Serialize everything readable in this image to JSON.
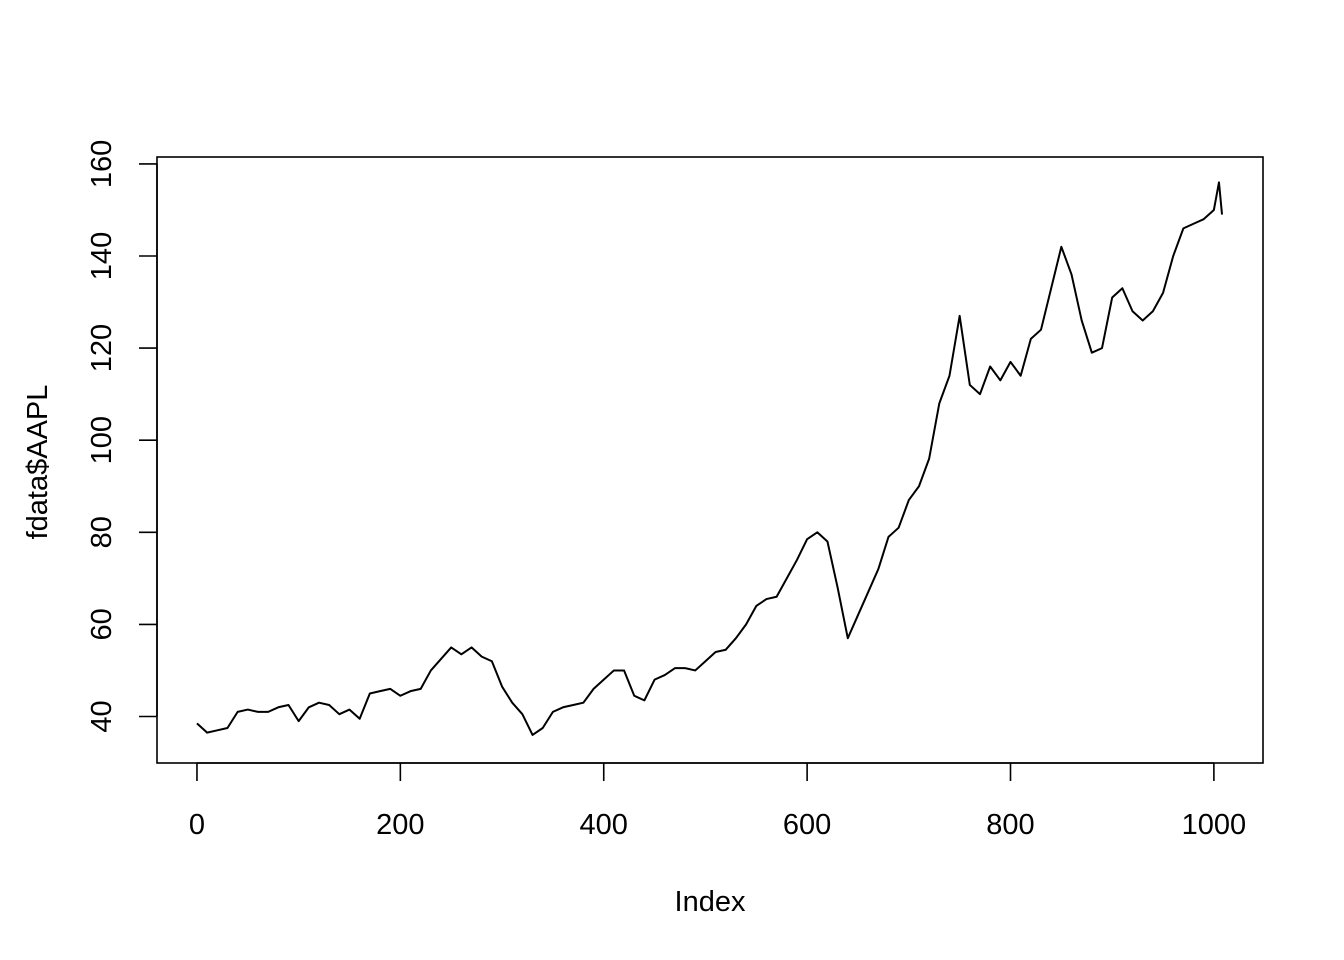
{
  "chart_data": {
    "type": "line",
    "xlabel": "Index",
    "ylabel": "fdata$AAPL",
    "x": [
      0,
      10,
      20,
      30,
      40,
      50,
      60,
      70,
      80,
      90,
      100,
      110,
      120,
      130,
      140,
      150,
      160,
      170,
      180,
      190,
      200,
      210,
      220,
      230,
      240,
      250,
      260,
      270,
      280,
      290,
      300,
      310,
      320,
      330,
      340,
      350,
      360,
      370,
      380,
      390,
      400,
      410,
      420,
      430,
      440,
      450,
      460,
      470,
      480,
      490,
      500,
      510,
      520,
      530,
      540,
      550,
      560,
      570,
      580,
      590,
      600,
      610,
      620,
      630,
      640,
      650,
      660,
      670,
      680,
      690,
      700,
      710,
      720,
      730,
      740,
      750,
      760,
      770,
      780,
      790,
      800,
      810,
      820,
      830,
      840,
      850,
      860,
      870,
      880,
      890,
      900,
      910,
      920,
      930,
      940,
      950,
      960,
      970,
      980,
      990,
      1000,
      1005,
      1008
    ],
    "series": [
      {
        "color": "#000000",
        "values": [
          38.5,
          36.5,
          37,
          37.5,
          41,
          41.5,
          41,
          41,
          42,
          42.5,
          39,
          42,
          43,
          42.5,
          40.5,
          41.5,
          39.5,
          45,
          45.5,
          46,
          44.5,
          45.5,
          46,
          50,
          52.5,
          55,
          53.5,
          55,
          53,
          52,
          46.5,
          43,
          40.5,
          36,
          37.5,
          41,
          42,
          42.5,
          43,
          46,
          48,
          50,
          50,
          44.5,
          43.5,
          48,
          49,
          50.5,
          50.5,
          50,
          52,
          54,
          54.5,
          57,
          60,
          64,
          65.5,
          66,
          70,
          74,
          78.5,
          80,
          78,
          68,
          57,
          62,
          67,
          72,
          79,
          81,
          87,
          90,
          96,
          108,
          114,
          127,
          112,
          110,
          116,
          113,
          117,
          114,
          122,
          124,
          133,
          142,
          136,
          126,
          119,
          120,
          131,
          133,
          128,
          126,
          128,
          132,
          140,
          146,
          147,
          148,
          150,
          156,
          149
        ]
      }
    ],
    "xlim": [
      -39.3,
      1048.3
    ],
    "ylim": [
      29.9,
      161.5
    ],
    "xticks": [
      0,
      200,
      400,
      600,
      800,
      1000
    ],
    "yticks": [
      40,
      60,
      80,
      100,
      120,
      140,
      160
    ]
  }
}
